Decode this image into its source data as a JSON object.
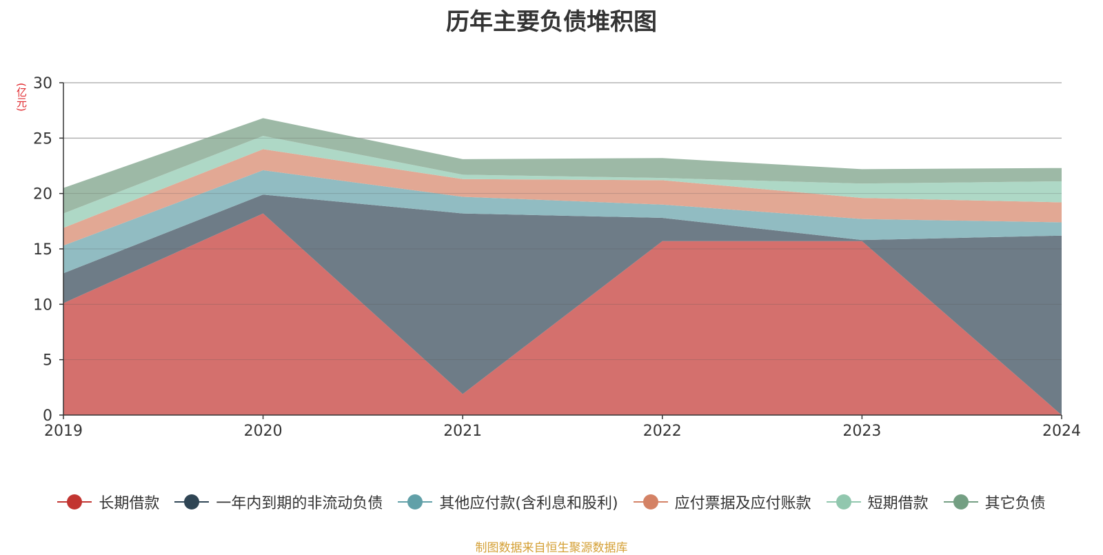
{
  "chart_data": {
    "type": "area",
    "stacked": true,
    "title": "历年主要负债堆积图",
    "unit": "(亿元)",
    "x": [
      "2019",
      "2020",
      "2021",
      "2022",
      "2023",
      "2024"
    ],
    "ylim": [
      0,
      30
    ],
    "yticks": [
      0,
      5,
      10,
      15,
      20,
      25,
      30
    ],
    "grid": true,
    "legend_position": "bottom",
    "series": [
      {
        "name": "长期借款",
        "color": "#c23531",
        "fill": "#d4706d",
        "values": [
          10.1,
          18.2,
          1.9,
          15.7,
          15.7,
          0.0
        ]
      },
      {
        "name": "一年内到期的非流动负债",
        "color": "#2f4554",
        "fill": "#6e7c87",
        "values": [
          2.7,
          1.7,
          16.3,
          2.1,
          0.1,
          16.2
        ]
      },
      {
        "name": "其他应付款(含利息和股利)",
        "color": "#61a0a8",
        "fill": "#91bcc2",
        "values": [
          2.5,
          2.2,
          1.5,
          1.2,
          1.9,
          1.2
        ]
      },
      {
        "name": "应付票据及应付账款",
        "color": "#d48265",
        "fill": "#e2a894",
        "values": [
          1.6,
          1.9,
          1.6,
          2.2,
          1.9,
          1.8
        ]
      },
      {
        "name": "短期借款",
        "color": "#91c7ae",
        "fill": "#aed8c6",
        "values": [
          1.3,
          1.2,
          0.4,
          0.2,
          1.3,
          1.9
        ]
      },
      {
        "name": "其它负债",
        "color": "#749f83",
        "fill": "#9db9a6",
        "values": [
          2.3,
          1.6,
          1.4,
          1.8,
          1.3,
          1.2
        ]
      }
    ]
  },
  "source_note": "制图数据来自恒生聚源数据库"
}
